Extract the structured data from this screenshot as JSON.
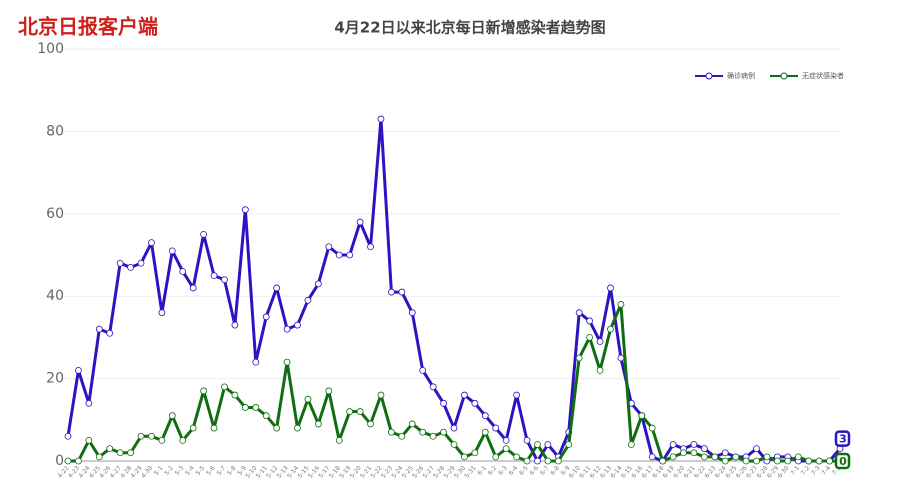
{
  "logo": "北京日报客户端",
  "chart_data": {
    "type": "line",
    "title": "4月22日以来北京每日新增感染者趋势图",
    "categories": [
      "4-22",
      "4-23",
      "4-24",
      "4-25",
      "4-26",
      "4-27",
      "4-28",
      "4-29",
      "4-30",
      "5-1",
      "5-2",
      "5-3",
      "5-4",
      "5-5",
      "5-6",
      "5-7",
      "5-8",
      "5-9",
      "5-10",
      "5-11",
      "5-12",
      "5-13",
      "5-14",
      "5-15",
      "5-16",
      "5-17",
      "5-18",
      "5-19",
      "5-20",
      "5-21",
      "5-22",
      "5-23",
      "5-24",
      "5-25",
      "5-26",
      "5-27",
      "5-28",
      "5-29",
      "5-30",
      "5-31",
      "6-1",
      "6-2",
      "6-3",
      "6-4",
      "6-5",
      "6-6",
      "6-7",
      "6-8",
      "6-9",
      "6-10",
      "6-11",
      "6-12",
      "6-13",
      "6-14",
      "6-15",
      "6-16",
      "6-17",
      "6-18",
      "6-19",
      "6-20",
      "6-21",
      "6-22",
      "6-23",
      "6-24",
      "6-25",
      "6-26",
      "6-27",
      "6-28",
      "6-29",
      "6-30",
      "7-1",
      "7-2",
      "7-3",
      "7-4",
      "7-5"
    ],
    "series": [
      {
        "name": "确诊病例",
        "color": "#2a14c4",
        "values": [
          6,
          22,
          14,
          32,
          31,
          48,
          47,
          48,
          53,
          36,
          51,
          46,
          42,
          55,
          45,
          44,
          33,
          61,
          24,
          35,
          42,
          32,
          33,
          39,
          43,
          52,
          50,
          50,
          58,
          52,
          83,
          41,
          41,
          36,
          22,
          18,
          14,
          8,
          16,
          14,
          11,
          8,
          5,
          16,
          5,
          0,
          4,
          1,
          7,
          36,
          34,
          29,
          42,
          25,
          14,
          11,
          1,
          0,
          4,
          3,
          4,
          3,
          1,
          2,
          1,
          1,
          3,
          0,
          1,
          1,
          0,
          0,
          0,
          0,
          3
        ]
      },
      {
        "name": "无症状感染者",
        "color": "#0f6e12",
        "values": [
          0,
          0,
          5,
          1,
          3,
          2,
          2,
          6,
          6,
          5,
          11,
          5,
          8,
          17,
          8,
          18,
          16,
          13,
          13,
          11,
          8,
          24,
          8,
          15,
          9,
          17,
          5,
          12,
          12,
          9,
          16,
          7,
          6,
          9,
          7,
          6,
          7,
          4,
          1,
          2,
          7,
          1,
          3,
          1,
          0,
          4,
          0,
          0,
          4,
          25,
          30,
          22,
          32,
          38,
          4,
          11,
          8,
          0,
          1,
          2,
          2,
          1,
          1,
          0,
          1,
          0,
          0,
          1,
          0,
          0,
          1,
          0,
          0,
          0,
          0
        ]
      }
    ],
    "ylim": [
      0,
      100
    ],
    "yticks": [
      0,
      20,
      40,
      60,
      80,
      100
    ],
    "grid": true,
    "legend": "top-right"
  }
}
